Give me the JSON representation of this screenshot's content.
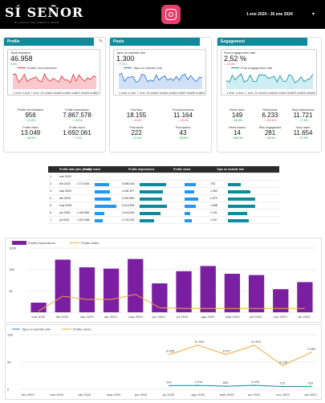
{
  "header": {
    "logo_main": "SÍ SEÑOR",
    "logo_sub": "CLINICA DE FERTILIDAD",
    "date_range": "1 ene 2024 - 30 ene 2024",
    "dropdown": "▾"
  },
  "profile": {
    "tab": "Profile",
    "kpi_label": "Total followers",
    "kpi_value": "46.958",
    "kpi_change": "0.5%",
    "legend": "Profile new followers",
    "stats": [
      {
        "label": "Profile new followers",
        "value": "956",
        "change": "↑ 47.8%"
      },
      {
        "label": "Profile impressions",
        "value": "7.867.578",
        "change": "↑ 73.0%"
      },
      {
        "label": "Profile clicks",
        "value": "13.049",
        "change": "↑ 38.4%"
      },
      {
        "label": "Profile reach",
        "value": "1.692.061",
        "change": "↑ 7.1%"
      }
    ]
  },
  "posts": {
    "tab": "Posts",
    "kpi_label": "Taps on website link",
    "kpi_value": "1.300",
    "kpi_change": "↑ 77.1%",
    "legend": "Taps on website link",
    "stats": [
      {
        "label": "Post likes",
        "value": "18.155",
        "change": "↓ -6.1%",
        "neg": true
      },
      {
        "label": "Post impressions",
        "value": "11.164",
        "change": "↓ -14.1%",
        "neg": true
      },
      {
        "label": "Post saves",
        "value": "222",
        "change": "↑ 47.4%"
      },
      {
        "label": "Post shares",
        "value": "43",
        "change": "↑ 55.6%"
      }
    ]
  },
  "engagement": {
    "tab": "Engagement",
    "kpi_label": "Post engagement rate",
    "kpi_value": "2,52 %",
    "kpi_change": "↓ -10.4%",
    "legend": "Post engagement rate",
    "stats": [
      {
        "label": "Reels views",
        "value": "149",
        "change": "↑ 66.3%"
      },
      {
        "label": "Reels plays",
        "value": "6.233",
        "change": "↓ -157.6%",
        "neg": true
      },
      {
        "label": "Story impressions",
        "value": "11.721",
        "change": "↑ 17.6%"
      },
      {
        "label": "Reels shares",
        "value": "14",
        "change": "↑ 366.3%"
      },
      {
        "label": "Reel engagement",
        "value": "281",
        "change": "↑ 38.4%"
      },
      {
        "label": "Story reach",
        "value": "11.654",
        "change": "↑ 37.9%"
      }
    ]
  },
  "axis_dates": [
    "1 ene",
    "4 ene",
    "7 ene",
    "10 ene",
    "13 ene",
    "16 ene",
    "19 ene",
    "22 ene",
    "25 ene",
    "28 ene"
  ],
  "table": {
    "headers": [
      "Profile date (año y mes)",
      "Profile reach",
      "Profile impressions",
      "Profile views",
      "Taps on website link"
    ],
    "rows": [
      [
        "1.",
        "ene 2023",
        "",
        "",
        "",
        ""
      ],
      [
        "2.",
        "feb 2023",
        "2.713.000",
        "5.085.443",
        "",
        "733"
      ],
      [
        "3.",
        "mar 2023",
        "",
        "4.431.577",
        "",
        "1.300"
      ],
      [
        "4.",
        "abr 2023",
        "",
        "4.302.800",
        "",
        "1.573"
      ],
      [
        "5.",
        "may 2023",
        "",
        "5.213.902",
        "",
        "1.598"
      ],
      [
        "6.",
        "jun 2023",
        "1.440.560",
        "4.016.520",
        "",
        "1.131"
      ],
      [
        "7.",
        "jul 2023",
        "1.574.465",
        "2.734.322",
        "",
        "1.207"
      ]
    ],
    "fracs": [
      [
        0,
        0,
        0,
        0
      ],
      [
        0.52,
        0.97,
        0.4,
        0.46
      ],
      [
        0.55,
        0.85,
        0.35,
        0.82
      ],
      [
        0.6,
        0.82,
        0.5,
        0.99
      ],
      [
        0.78,
        1,
        0.42,
        1
      ],
      [
        0.35,
        0.77,
        0.22,
        0.71
      ],
      [
        0.3,
        0.52,
        0.25,
        0.76
      ]
    ]
  },
  "bar_chart": {
    "legend": [
      "Profile impressions",
      "Profile reach"
    ],
    "categories": [
      "ene 2023",
      "feb 2023",
      "mar 2023",
      "abr 2023",
      "may 2023",
      "jun 2023",
      "jul 2023",
      "ago 2023",
      "sept 2023",
      "oct 2023",
      "nov 2023",
      "dic 2023"
    ],
    "bar_labels": [
      "",
      "",
      "",
      "",
      "",
      "",
      "",
      "",
      "",
      "",
      "",
      ""
    ],
    "bars": [
      0.15,
      0.82,
      0.7,
      0.68,
      0.83,
      0.45,
      0.64,
      0.72,
      0.6,
      0.58,
      0.36,
      0.47
    ],
    "line": [
      0.02,
      0.25,
      0.2,
      0.2,
      0.28,
      0.07,
      0.06,
      0.06,
      0.06,
      0.06,
      0.06,
      0.06
    ],
    "yticks": [
      "100K",
      "10K",
      "1K",
      ""
    ]
  },
  "line_chart": {
    "legend": [
      "Taps on website link",
      "Profile views"
    ],
    "categories": [
      "feb 2023",
      "mar 2023",
      "abr 2023",
      "may 2023",
      "jun 2023",
      "jul 2023",
      "ago 2023",
      "sept 2023",
      "oct 2023",
      "nov 2023",
      "dic 2023"
    ],
    "views": [
      null,
      null,
      null,
      null,
      null,
      8926,
      11320,
      8927,
      11320,
      6120,
      9453
    ],
    "view_labels": [
      "",
      "",
      "",
      "",
      "",
      "8.926",
      "11.320",
      "8.927",
      "11.320",
      "6.120",
      "9.453"
    ],
    "taps": [
      null,
      null,
      null,
      null,
      null,
      942,
      1012,
      805,
      1025,
      716,
      763
    ],
    "tap_labels": [
      "",
      "",
      "",
      "",
      "",
      "942",
      "1.012",
      "805",
      "1.025",
      "716",
      "763"
    ],
    "yticks": [
      "10K",
      "5K",
      "0"
    ]
  },
  "colors": {
    "teal": "#0e8a9c",
    "pink": "#e83e6c",
    "purple": "#7b1fa2",
    "orange": "#f4a53a",
    "blue": "#2196f3",
    "green": "#1a9a3a",
    "red": "#d33"
  }
}
